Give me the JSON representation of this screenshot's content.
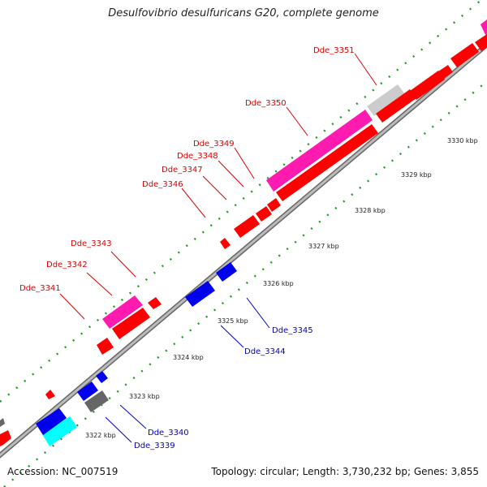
{
  "title": "Desulfovibrio desulfuricans G20, complete genome",
  "footer": {
    "accession_label": "Accession:",
    "accession": "NC_007519",
    "topology_label": "Topology:",
    "topology": "circular",
    "length_label": "Length:",
    "length": "3,730,232 bp",
    "genes_label": "Genes:",
    "genes": "3,855"
  },
  "colors": {
    "red": "#ff0000",
    "blue": "#0000ee",
    "magenta": "#ff1ab0",
    "gray": "#cccccc",
    "darkgray": "#666666",
    "cyan": "#00ffff",
    "backbone": "#999999",
    "tick_green": "#229922",
    "label_red": "#dd0000",
    "label_blue": "#0000cc"
  },
  "ticks": [
    "3322 kbp",
    "3323 kbp",
    "3324 kbp",
    "3325 kbp",
    "3326 kbp",
    "3327 kbp",
    "3328 kbp",
    "3329 kbp",
    "3330 kbp"
  ],
  "gene_labels_top": [
    "Dde_3341",
    "Dde_3342",
    "Dde_3343",
    "Dde_3346",
    "Dde_3347",
    "Dde_3348",
    "Dde_3349",
    "Dde_3350",
    "Dde_3351"
  ],
  "gene_labels_bottom": [
    "Dde_3339",
    "Dde_3340",
    "Dde_3344",
    "Dde_3345"
  ]
}
